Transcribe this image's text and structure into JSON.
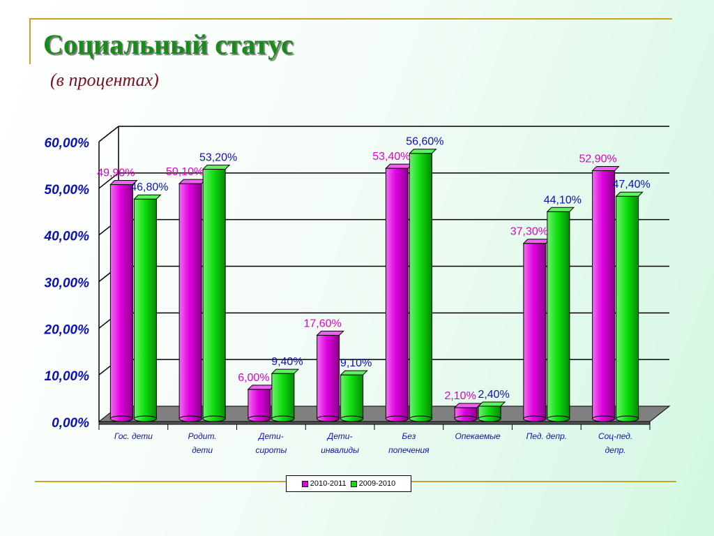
{
  "header": {
    "title": "Социальный  статус",
    "subtitle": "(в процентах)"
  },
  "colors": {
    "series_2010_2011": "#e000e0",
    "series_2009_2010": "#10e010",
    "label_2010_2011": "#e000c8",
    "label_2009_2010": "#0a10b8",
    "axis_text": "#0a10b8",
    "category_text": "#0a10b8"
  },
  "chart_data": {
    "type": "bar",
    "title": "",
    "xlabel": "",
    "ylabel": "",
    "ylim": [
      0,
      60
    ],
    "grid": true,
    "legend_position": "bottom",
    "y_ticks": [
      "0,00%",
      "10,00%",
      "20,00%",
      "30,00%",
      "40,00%",
      "50,00%",
      "60,00%"
    ],
    "categories": [
      [
        "Гос. дети"
      ],
      [
        "Родит.",
        "дети"
      ],
      [
        "Дети-",
        "сироты"
      ],
      [
        "Дети-",
        "инвалиды"
      ],
      [
        "Без",
        "попечения"
      ],
      [
        "Опекаемые"
      ],
      [
        "Пед. депр."
      ],
      [
        "Соц-пед.",
        "депр."
      ]
    ],
    "series": [
      {
        "name": "2010-2011",
        "values": [
          49.9,
          50.1,
          6.0,
          17.6,
          53.4,
          2.1,
          37.3,
          52.9
        ],
        "labels": [
          "49,90%",
          "50,10%",
          "6,00%",
          "17,60%",
          "53,40%",
          "2,10%",
          "37,30%",
          "52,90%"
        ]
      },
      {
        "name": "2009-2010",
        "values": [
          46.8,
          53.2,
          9.4,
          9.1,
          56.6,
          2.4,
          44.1,
          47.4
        ],
        "labels": [
          "46,80%",
          "53,20%",
          "9,40%",
          "9,10%",
          "56,60%",
          "2,40%",
          "44,10%",
          "47,40%"
        ]
      }
    ]
  }
}
